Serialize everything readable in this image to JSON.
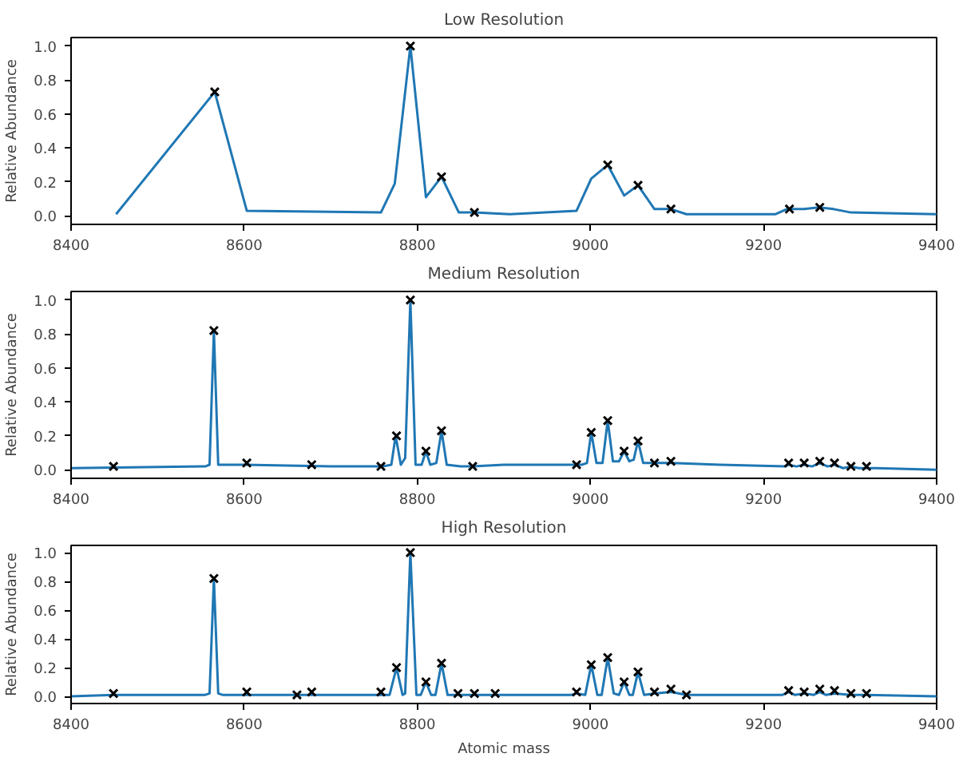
{
  "chart_data": [
    {
      "type": "line",
      "title": "Low Resolution",
      "ylabel": "Relative Abundance",
      "xlim": [
        8400,
        9400
      ],
      "ylim": [
        -0.05,
        1.05
      ],
      "xticks": [
        8400,
        8600,
        8800,
        9000,
        9200,
        9400
      ],
      "yticks": [
        {
          "value": 0,
          "label": "0.0"
        },
        {
          "value": 0.2,
          "label": "0.2"
        },
        {
          "value": 0.4,
          "label": "0.4"
        },
        {
          "value": 0.6,
          "label": "0.6"
        },
        {
          "value": 0.8,
          "label": "0.8"
        },
        {
          "value": 1,
          "label": "1.0"
        }
      ],
      "grid": false,
      "series": [
        {
          "color": "#1f77b4",
          "marker": "none",
          "x": [
            8452,
            8566,
            8603,
            8758,
            8774,
            8792,
            8810,
            8828,
            8848,
            8866,
            8907,
            8984,
            9001,
            9020,
            9039,
            9055,
            9074,
            9093,
            9111,
            9214,
            9227,
            9247,
            9264,
            9281,
            9301,
            9400
          ],
          "values": [
            0.01,
            0.73,
            0.03,
            0.02,
            0.19,
            1.0,
            0.11,
            0.23,
            0.02,
            0.02,
            0.01,
            0.03,
            0.22,
            0.3,
            0.12,
            0.18,
            0.04,
            0.04,
            0.01,
            0.01,
            0.04,
            0.04,
            0.05,
            0.04,
            0.02,
            0.01
          ]
        },
        {
          "type": "scatter",
          "color": "#000000",
          "marker": "cross",
          "x": [
            8566,
            8792,
            8828,
            8866,
            9020,
            9055,
            9093,
            9230,
            9265
          ],
          "values": [
            0.73,
            1.0,
            0.23,
            0.02,
            0.3,
            0.18,
            0.04,
            0.04,
            0.05
          ]
        }
      ]
    },
    {
      "type": "line",
      "title": "Medium Resolution",
      "ylabel": "Relative Abundance",
      "xlim": [
        8400,
        9400
      ],
      "ylim": [
        -0.05,
        1.05
      ],
      "xticks": [
        8400,
        8600,
        8800,
        9000,
        9200,
        9400
      ],
      "yticks": [
        {
          "value": 0,
          "label": "0.0"
        },
        {
          "value": 0.2,
          "label": "0.2"
        },
        {
          "value": 0.4,
          "label": "0.4"
        },
        {
          "value": 0.6,
          "label": "0.6"
        },
        {
          "value": 0.8,
          "label": "0.8"
        },
        {
          "value": 1,
          "label": "1.0"
        }
      ],
      "grid": false,
      "series": [
        {
          "color": "#1f77b4",
          "marker": "none",
          "x": [
            8400,
            8555,
            8560,
            8565,
            8570,
            8600,
            8700,
            8760,
            8770,
            8775,
            8781,
            8786,
            8792,
            8798,
            8805,
            8810,
            8815,
            8822,
            8828,
            8834,
            8850,
            8864,
            8900,
            8990,
            8996,
            9001,
            9007,
            9014,
            9020,
            9026,
            9033,
            9039,
            9045,
            9050,
            9055,
            9061,
            9074,
            9093,
            9150,
            9225,
            9229,
            9238,
            9247,
            9256,
            9265,
            9274,
            9282,
            9292,
            9301,
            9310,
            9319,
            9330,
            9400
          ],
          "values": [
            0.01,
            0.02,
            0.03,
            0.82,
            0.03,
            0.03,
            0.02,
            0.02,
            0.03,
            0.2,
            0.03,
            0.07,
            1.0,
            0.03,
            0.03,
            0.11,
            0.03,
            0.04,
            0.23,
            0.03,
            0.02,
            0.02,
            0.03,
            0.03,
            0.04,
            0.22,
            0.04,
            0.04,
            0.29,
            0.05,
            0.05,
            0.11,
            0.05,
            0.06,
            0.17,
            0.04,
            0.04,
            0.04,
            0.03,
            0.02,
            0.03,
            0.02,
            0.03,
            0.02,
            0.04,
            0.02,
            0.03,
            0.01,
            0.02,
            0.01,
            0.01,
            0.01,
            0.0
          ]
        },
        {
          "type": "scatter",
          "color": "#000000",
          "marker": "cross",
          "x": [
            8449,
            8565,
            8603,
            8678,
            8758,
            8776,
            8792,
            8810,
            8828,
            8864,
            8984,
            9001,
            9020,
            9039,
            9055,
            9074,
            9093,
            9229,
            9247,
            9265,
            9282,
            9301,
            9319
          ],
          "values": [
            0.02,
            0.82,
            0.04,
            0.03,
            0.02,
            0.2,
            1.0,
            0.11,
            0.23,
            0.02,
            0.03,
            0.22,
            0.29,
            0.11,
            0.17,
            0.04,
            0.05,
            0.04,
            0.04,
            0.05,
            0.04,
            0.02,
            0.02
          ]
        }
      ]
    },
    {
      "type": "line",
      "title": "High Resolution",
      "xlabel": "Atomic mass",
      "ylabel": "Relative Abundance",
      "xlim": [
        8400,
        9400
      ],
      "ylim": [
        -0.05,
        1.05
      ],
      "xticks": [
        8400,
        8600,
        8800,
        9000,
        9200,
        9400
      ],
      "yticks": [
        {
          "value": 0,
          "label": "0.0"
        },
        {
          "value": 0.2,
          "label": "0.2"
        },
        {
          "value": 0.4,
          "label": "0.4"
        },
        {
          "value": 0.6,
          "label": "0.6"
        },
        {
          "value": 0.8,
          "label": "0.8"
        },
        {
          "value": 1,
          "label": "1.0"
        }
      ],
      "grid": false,
      "series": [
        {
          "color": "#1f77b4",
          "marker": "none",
          "x": [
            8400,
            8449,
            8555,
            8560,
            8565,
            8570,
            8575,
            8603,
            8661,
            8678,
            8758,
            8768,
            8776,
            8783,
            8786,
            8792,
            8799,
            8804,
            8810,
            8816,
            8821,
            8828,
            8835,
            8847,
            8866,
            8890,
            8978,
            8984,
            8994,
            9001,
            9008,
            9013,
            9020,
            9027,
            9033,
            9039,
            9045,
            9049,
            9055,
            9062,
            9074,
            9093,
            9111,
            9222,
            9229,
            9236,
            9247,
            9258,
            9265,
            9272,
            9282,
            9301,
            9319,
            9400
          ],
          "values": [
            0.0,
            0.01,
            0.01,
            0.02,
            0.82,
            0.02,
            0.01,
            0.01,
            0.01,
            0.01,
            0.01,
            0.01,
            0.2,
            0.01,
            0.02,
            1.0,
            0.01,
            0.01,
            0.1,
            0.01,
            0.01,
            0.23,
            0.01,
            0.01,
            0.01,
            0.01,
            0.01,
            0.02,
            0.01,
            0.22,
            0.01,
            0.01,
            0.27,
            0.02,
            0.01,
            0.1,
            0.01,
            0.01,
            0.17,
            0.01,
            0.02,
            0.03,
            0.01,
            0.01,
            0.03,
            0.01,
            0.02,
            0.01,
            0.03,
            0.01,
            0.02,
            0.01,
            0.01,
            0.0
          ]
        },
        {
          "type": "scatter",
          "color": "#000000",
          "marker": "cross",
          "x": [
            8449,
            8565,
            8603,
            8661,
            8678,
            8758,
            8776,
            8792,
            8810,
            8828,
            8847,
            8866,
            8890,
            8984,
            9001,
            9020,
            9039,
            9055,
            9074,
            9093,
            9111,
            9229,
            9247,
            9265,
            9282,
            9301,
            9319
          ],
          "values": [
            0.02,
            0.82,
            0.03,
            0.01,
            0.03,
            0.03,
            0.2,
            1.0,
            0.1,
            0.23,
            0.02,
            0.02,
            0.02,
            0.03,
            0.22,
            0.27,
            0.1,
            0.17,
            0.03,
            0.05,
            0.01,
            0.04,
            0.03,
            0.05,
            0.04,
            0.02,
            0.02
          ]
        }
      ]
    }
  ]
}
